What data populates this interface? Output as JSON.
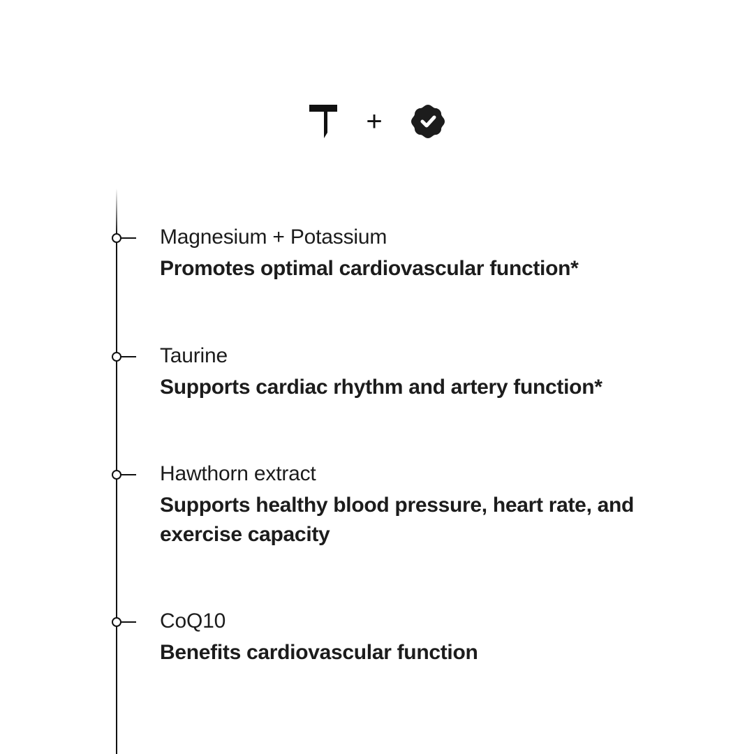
{
  "header": {
    "logo_left_icon": "t-logo-icon",
    "plus_symbol": "+",
    "logo_right_icon": "verified-badge-icon"
  },
  "items": [
    {
      "name": "Magnesium + Potassium",
      "description": "Promotes optimal cardiovascular function*"
    },
    {
      "name": "Taurine",
      "description": "Supports cardiac rhythm and artery function*"
    },
    {
      "name": "Hawthorn extract",
      "description": "Supports healthy blood pressure, heart rate, and exercise capacity"
    },
    {
      "name": "CoQ10",
      "description": "Benefits cardiovascular function"
    }
  ]
}
